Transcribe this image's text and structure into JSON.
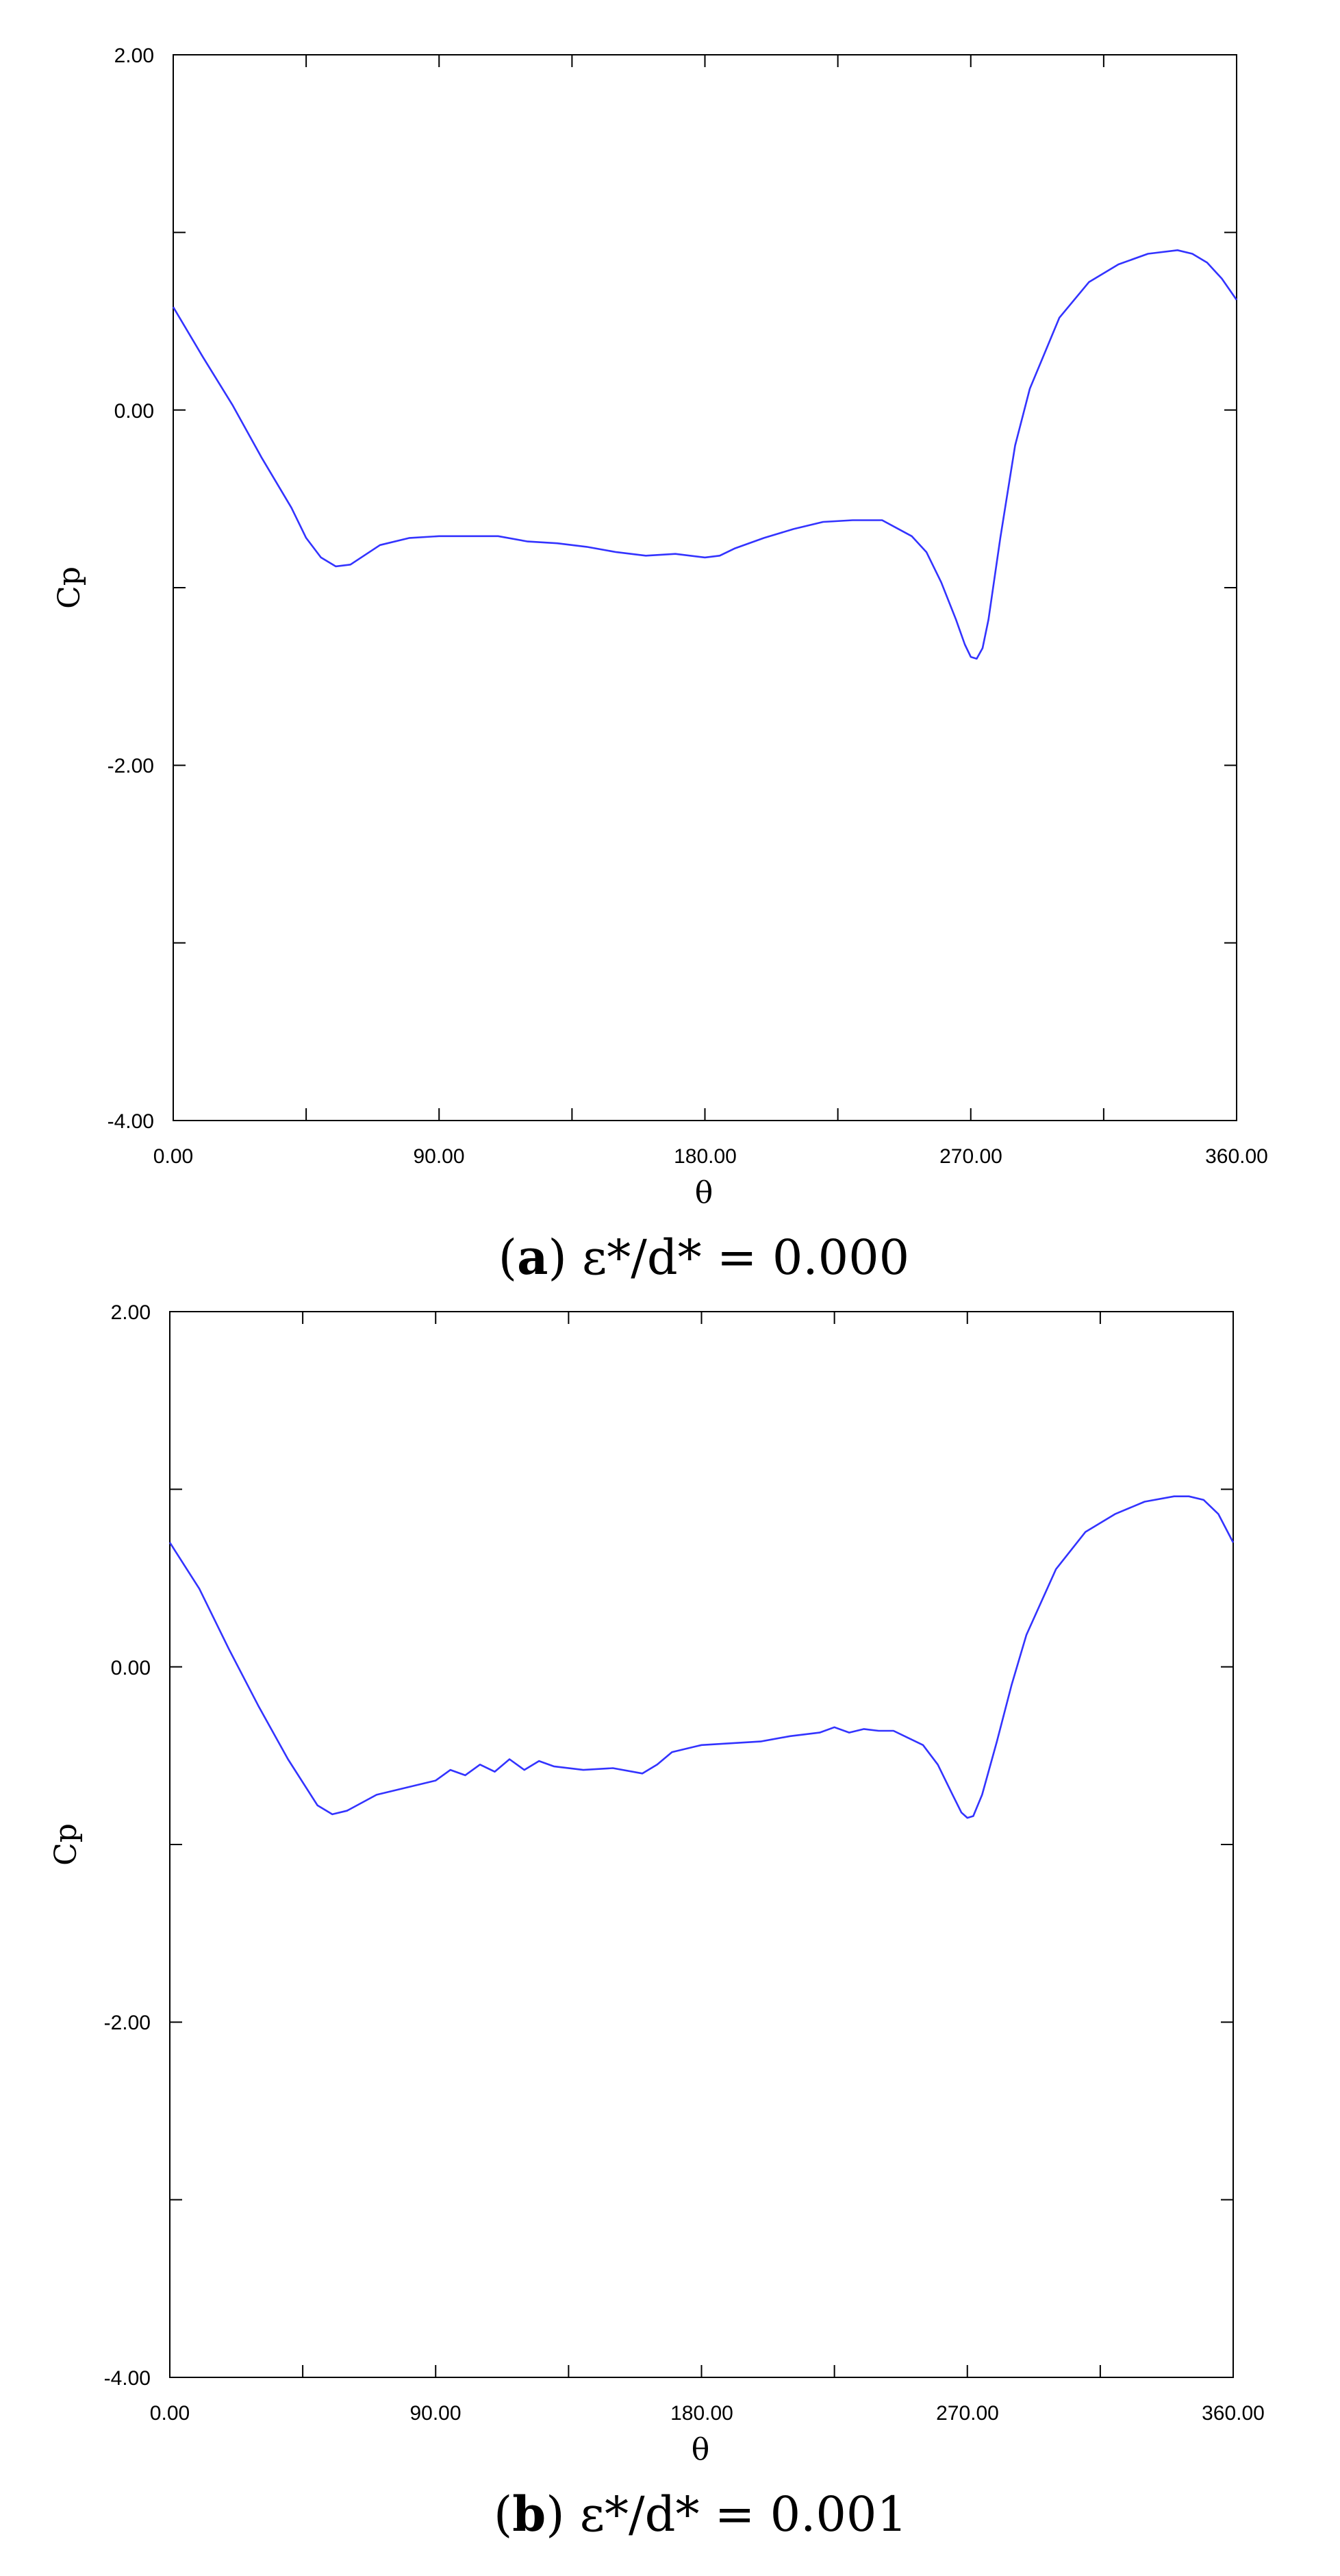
{
  "chart_data": [
    {
      "type": "line",
      "caption_letter": "a",
      "caption_rest": "ε*/d* = 0.000",
      "xlabel": "θ",
      "ylabel": "Cp",
      "xlim": [
        0,
        360
      ],
      "ylim": [
        -4,
        2
      ],
      "x_tick_labels": [
        "0.00",
        "90.00",
        "180.00",
        "270.00",
        "360.00"
      ],
      "y_tick_labels": [
        "2.00",
        "0.00",
        "-2.00",
        "-4.00"
      ],
      "grid": false,
      "series": [
        {
          "color": "#3333ff",
          "x": [
            0,
            10,
            20,
            30,
            40,
            45,
            50,
            55,
            60,
            70,
            80,
            90,
            100,
            110,
            120,
            130,
            140,
            150,
            160,
            170,
            180,
            185,
            190,
            200,
            210,
            220,
            230,
            240,
            250,
            255,
            260,
            265,
            268,
            270,
            272,
            274,
            276,
            280,
            285,
            290,
            300,
            310,
            320,
            330,
            340,
            345,
            350,
            355,
            360
          ],
          "y": [
            0.58,
            0.3,
            0.03,
            -0.27,
            -0.55,
            -0.72,
            -0.83,
            -0.88,
            -0.87,
            -0.76,
            -0.72,
            -0.71,
            -0.71,
            -0.71,
            -0.74,
            -0.75,
            -0.77,
            -0.8,
            -0.82,
            -0.81,
            -0.83,
            -0.82,
            -0.78,
            -0.72,
            -0.67,
            -0.63,
            -0.62,
            -0.62,
            -0.71,
            -0.8,
            -0.97,
            -1.18,
            -1.32,
            -1.39,
            -1.4,
            -1.34,
            -1.18,
            -0.72,
            -0.2,
            0.12,
            0.52,
            0.72,
            0.82,
            0.88,
            0.9,
            0.88,
            0.83,
            0.74,
            0.62
          ]
        }
      ]
    },
    {
      "type": "line",
      "caption_letter": "b",
      "caption_rest": "ε*/d* = 0.001",
      "xlabel": "θ",
      "ylabel": "Cp",
      "xlim": [
        0,
        360
      ],
      "ylim": [
        -4,
        2
      ],
      "x_tick_labels": [
        "0.00",
        "90.00",
        "180.00",
        "270.00",
        "360.00"
      ],
      "y_tick_labels": [
        "2.00",
        "0.00",
        "-2.00",
        "-4.00"
      ],
      "grid": false,
      "series": [
        {
          "color": "#3333ff",
          "x": [
            0,
            10,
            20,
            30,
            40,
            50,
            55,
            60,
            70,
            80,
            90,
            95,
            100,
            105,
            110,
            115,
            120,
            125,
            130,
            140,
            150,
            160,
            165,
            170,
            180,
            190,
            200,
            210,
            220,
            225,
            230,
            235,
            240,
            245,
            250,
            255,
            260,
            265,
            268,
            270,
            272,
            275,
            280,
            285,
            290,
            300,
            310,
            320,
            330,
            340,
            345,
            350,
            355,
            360
          ],
          "y": [
            0.7,
            0.44,
            0.1,
            -0.22,
            -0.52,
            -0.78,
            -0.83,
            -0.81,
            -0.72,
            -0.68,
            -0.64,
            -0.58,
            -0.61,
            -0.55,
            -0.59,
            -0.52,
            -0.58,
            -0.53,
            -0.56,
            -0.58,
            -0.57,
            -0.6,
            -0.55,
            -0.48,
            -0.44,
            -0.43,
            -0.42,
            -0.39,
            -0.37,
            -0.34,
            -0.37,
            -0.35,
            -0.36,
            -0.36,
            -0.4,
            -0.44,
            -0.55,
            -0.72,
            -0.82,
            -0.85,
            -0.84,
            -0.72,
            -0.42,
            -0.1,
            0.18,
            0.55,
            0.76,
            0.86,
            0.93,
            0.96,
            0.96,
            0.94,
            0.86,
            0.7
          ]
        }
      ]
    }
  ]
}
